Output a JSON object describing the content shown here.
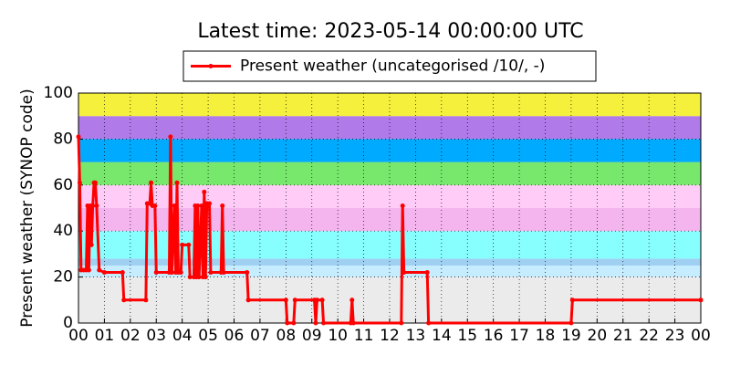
{
  "chart_data": {
    "type": "line",
    "title": "Latest time: 2023-05-14 00:00:00 UTC",
    "y_label": "Present weather (SYNOP code)",
    "legend_position": "upper center",
    "grid": true,
    "xlim": [
      0,
      24
    ],
    "ylim": [
      0,
      100
    ],
    "yticks": [
      0,
      20,
      40,
      60,
      80,
      100
    ],
    "xticks": [
      {
        "value": 0,
        "label": "00"
      },
      {
        "value": 1,
        "label": "01"
      },
      {
        "value": 2,
        "label": "02"
      },
      {
        "value": 3,
        "label": "03"
      },
      {
        "value": 4,
        "label": "04"
      },
      {
        "value": 5,
        "label": "05"
      },
      {
        "value": 6,
        "label": "06"
      },
      {
        "value": 7,
        "label": "07"
      },
      {
        "value": 8,
        "label": "08"
      },
      {
        "value": 9,
        "label": "09"
      },
      {
        "value": 10,
        "label": "10"
      },
      {
        "value": 11,
        "label": "11"
      },
      {
        "value": 12,
        "label": "12"
      },
      {
        "value": 13,
        "label": "13"
      },
      {
        "value": 14,
        "label": "14"
      },
      {
        "value": 15,
        "label": "15"
      },
      {
        "value": 16,
        "label": "16"
      },
      {
        "value": 17,
        "label": "17"
      },
      {
        "value": 18,
        "label": "18"
      },
      {
        "value": 19,
        "label": "19"
      },
      {
        "value": 20,
        "label": "20"
      },
      {
        "value": 21,
        "label": "21"
      },
      {
        "value": 22,
        "label": "22"
      },
      {
        "value": 23,
        "label": "23"
      },
      {
        "value": 24,
        "label": "00"
      }
    ],
    "bands": [
      {
        "from": 0,
        "to": 20,
        "color": "#ebebeb"
      },
      {
        "from": 20,
        "to": 25,
        "color": "#c6ecff"
      },
      {
        "from": 25,
        "to": 28,
        "color": "#9fd0f2"
      },
      {
        "from": 28,
        "to": 40,
        "color": "#88ffff"
      },
      {
        "from": 40,
        "to": 50,
        "color": "#f4b4ee"
      },
      {
        "from": 50,
        "to": 60,
        "color": "#ffccf8"
      },
      {
        "from": 60,
        "to": 70,
        "color": "#77e86b"
      },
      {
        "from": 70,
        "to": 80,
        "color": "#00aaff"
      },
      {
        "from": 80,
        "to": 90,
        "color": "#b07ae8"
      },
      {
        "from": 90,
        "to": 100,
        "color": "#f5f03c"
      }
    ],
    "series": [
      {
        "name": "Present weather (uncategorised /10/, -)",
        "color": "#ff0000",
        "x": [
          0.0,
          0.05,
          0.1,
          0.2,
          0.3,
          0.35,
          0.4,
          0.45,
          0.5,
          0.55,
          0.6,
          0.65,
          0.7,
          0.8,
          1.0,
          1.7,
          1.75,
          2.6,
          2.65,
          2.75,
          2.8,
          2.85,
          2.95,
          3.0,
          3.5,
          3.55,
          3.6,
          3.7,
          3.75,
          3.8,
          3.85,
          3.95,
          4.0,
          4.25,
          4.3,
          4.45,
          4.5,
          4.55,
          4.6,
          4.65,
          4.75,
          4.8,
          4.85,
          4.9,
          4.95,
          5.05,
          5.1,
          5.5,
          5.55,
          5.6,
          6.5,
          6.55,
          8.0,
          8.05,
          8.3,
          8.35,
          9.1,
          9.15,
          9.2,
          9.4,
          9.45,
          10.5,
          10.55,
          10.6,
          12.45,
          12.5,
          12.55,
          13.45,
          13.5,
          19.0,
          19.05,
          24.0
        ],
        "values": [
          81,
          61,
          23,
          23,
          23,
          51,
          23,
          51,
          34,
          51,
          61,
          61,
          51,
          23,
          22,
          22,
          10,
          10,
          52,
          52,
          61,
          51,
          51,
          22,
          22,
          81,
          22,
          51,
          22,
          61,
          22,
          22,
          34,
          34,
          20,
          20,
          51,
          20,
          51,
          20,
          51,
          20,
          57,
          20,
          52,
          52,
          22,
          22,
          51,
          22,
          22,
          10,
          10,
          0,
          0,
          10,
          10,
          0,
          10,
          10,
          0,
          0,
          10,
          0,
          0,
          51,
          22,
          22,
          0,
          0,
          10,
          10
        ]
      }
    ]
  }
}
